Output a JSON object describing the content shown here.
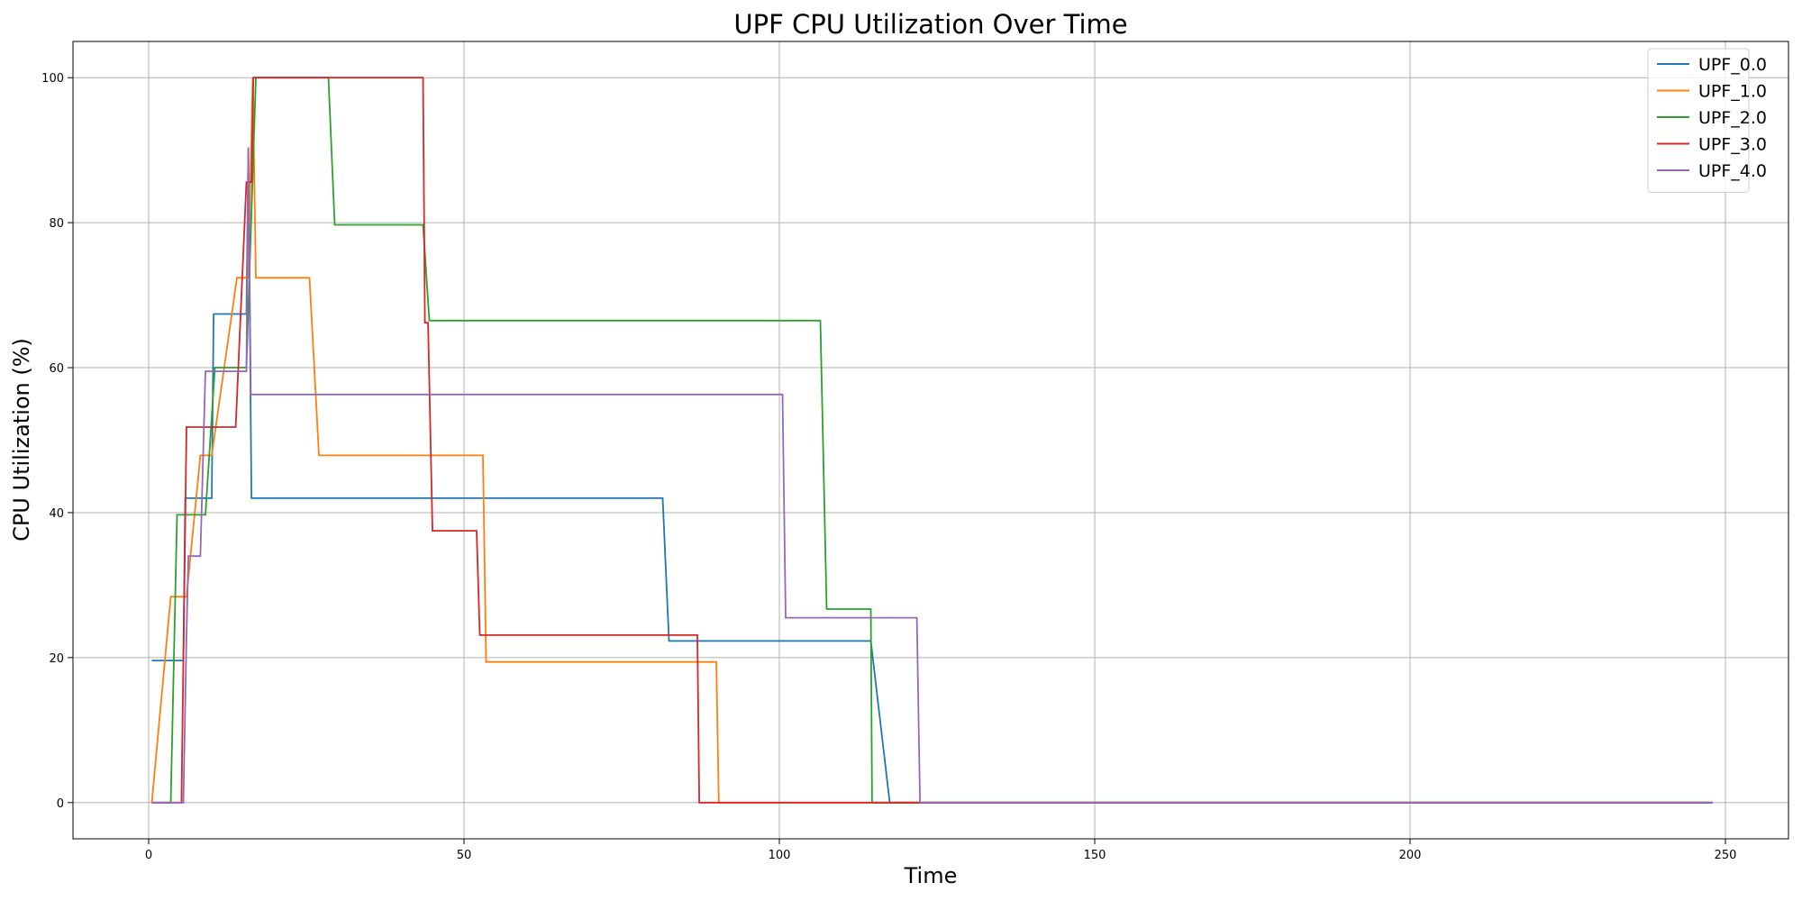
{
  "chart_data": {
    "type": "line",
    "title": "UPF CPU Utilization Over Time",
    "xlabel": "Time",
    "ylabel": "CPU Utilization (%)",
    "xlim": [
      -12,
      260
    ],
    "ylim": [
      -5,
      105
    ],
    "xticks": [
      0,
      50,
      100,
      150,
      200,
      250
    ],
    "yticks": [
      0,
      20,
      40,
      60,
      80,
      100
    ],
    "grid": true,
    "legend_position": "top-right",
    "series": [
      {
        "name": "UPF_0.0",
        "color": "#1f77b4",
        "points": [
          [
            0.5,
            19.6
          ],
          [
            5.5,
            19.6
          ],
          [
            5.8,
            42
          ],
          [
            10.0,
            42
          ],
          [
            10.3,
            67.4
          ],
          [
            15.5,
            67.4
          ],
          [
            15.8,
            90
          ],
          [
            16.3,
            42
          ],
          [
            81.5,
            42
          ],
          [
            82.5,
            22.3
          ],
          [
            114.5,
            22.3
          ],
          [
            117.5,
            0
          ],
          [
            248,
            0
          ]
        ]
      },
      {
        "name": "UPF_1.0",
        "color": "#ff7f0e",
        "points": [
          [
            0.5,
            0
          ],
          [
            3.5,
            28.4
          ],
          [
            6.0,
            28.4
          ],
          [
            8.2,
            47.9
          ],
          [
            10.0,
            47.9
          ],
          [
            14.0,
            72.4
          ],
          [
            15.8,
            72.4
          ],
          [
            16.5,
            100
          ],
          [
            17.0,
            72.4
          ],
          [
            25.5,
            72.4
          ],
          [
            27.0,
            47.9
          ],
          [
            53.0,
            47.9
          ],
          [
            53.5,
            19.4
          ],
          [
            90.0,
            19.4
          ],
          [
            90.4,
            0
          ],
          [
            248,
            0
          ]
        ]
      },
      {
        "name": "UPF_2.0",
        "color": "#2ca02c",
        "points": [
          [
            0.5,
            0
          ],
          [
            3.5,
            0
          ],
          [
            4.5,
            39.7
          ],
          [
            9.0,
            39.7
          ],
          [
            10.5,
            60.0
          ],
          [
            15.5,
            60.0
          ],
          [
            17.0,
            100
          ],
          [
            28.5,
            100
          ],
          [
            29.5,
            79.7
          ],
          [
            43.5,
            79.7
          ],
          [
            44.5,
            66.5
          ],
          [
            106.5,
            66.5
          ],
          [
            107.5,
            26.7
          ],
          [
            114.5,
            26.7
          ],
          [
            114.7,
            0
          ],
          [
            248,
            0
          ]
        ]
      },
      {
        "name": "UPF_3.0",
        "color": "#d62728",
        "points": [
          [
            0.5,
            0
          ],
          [
            5.2,
            0
          ],
          [
            6.0,
            51.8
          ],
          [
            13.8,
            51.8
          ],
          [
            15.5,
            85.6
          ],
          [
            16.3,
            85.6
          ],
          [
            16.6,
            100
          ],
          [
            43.5,
            100
          ],
          [
            43.8,
            66.2
          ],
          [
            44.3,
            66.2
          ],
          [
            45.0,
            37.5
          ],
          [
            52.0,
            37.5
          ],
          [
            52.5,
            23.1
          ],
          [
            87.0,
            23.1
          ],
          [
            87.3,
            0
          ],
          [
            248,
            0
          ]
        ]
      },
      {
        "name": "UPF_4.0",
        "color": "#9467bd",
        "points": [
          [
            0.5,
            0
          ],
          [
            5.5,
            0
          ],
          [
            6.0,
            23.1
          ],
          [
            6.3,
            34.0
          ],
          [
            8.2,
            34.0
          ],
          [
            9.0,
            59.5
          ],
          [
            15.5,
            59.5
          ],
          [
            15.8,
            90.4
          ],
          [
            16.2,
            56.3
          ],
          [
            100.5,
            56.3
          ],
          [
            101.0,
            25.5
          ],
          [
            121.8,
            25.5
          ],
          [
            122.3,
            0
          ],
          [
            248,
            0
          ]
        ]
      }
    ]
  }
}
